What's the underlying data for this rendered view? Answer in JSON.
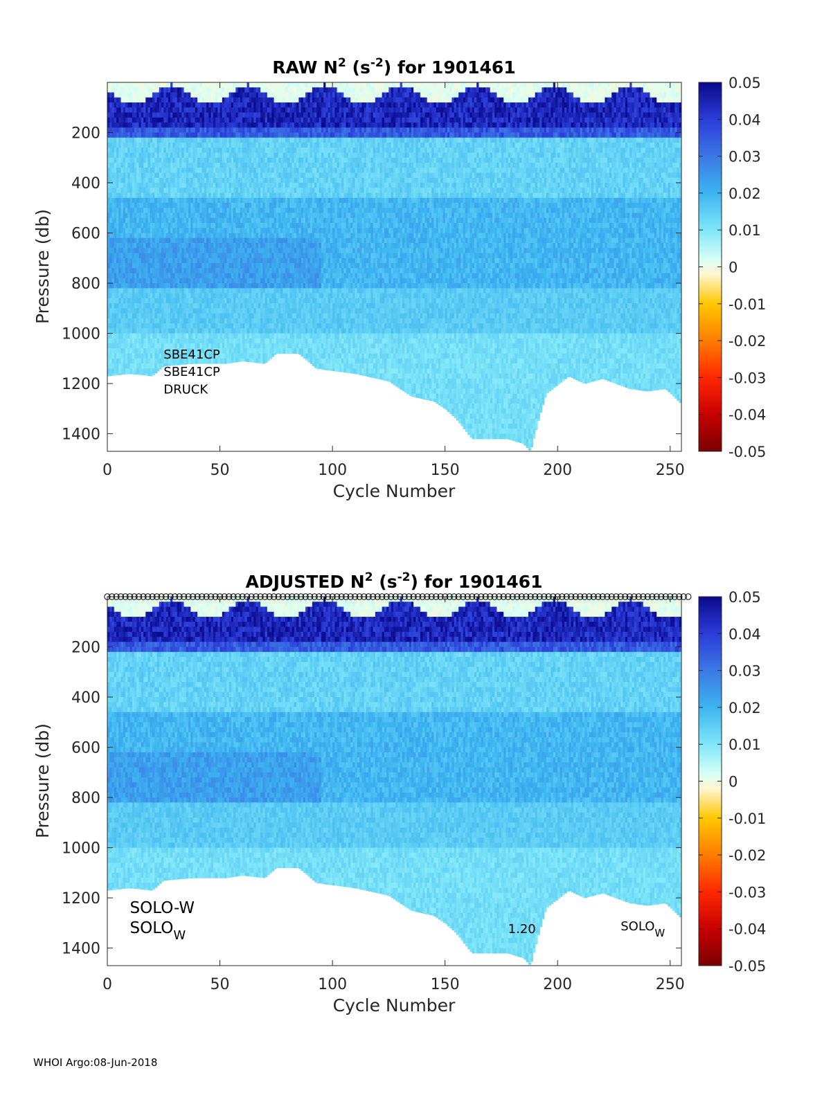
{
  "footer": "WHOI Argo:08-Jun-2018",
  "chart_data": [
    {
      "type": "heatmap",
      "title_main": "RAW N",
      "title_sup1": "2",
      "title_mid": " (s",
      "title_sup2": "-2",
      "title_end": ") for 1901461",
      "xlabel": "Cycle Number",
      "ylabel": "Pressure (db)",
      "xlim": [
        0,
        255
      ],
      "ylim": [
        1470,
        0
      ],
      "xticks": [
        0,
        50,
        100,
        150,
        200,
        250
      ],
      "yticks": [
        200,
        400,
        600,
        800,
        1000,
        1200,
        1400
      ],
      "colorbar": {
        "min": -0.05,
        "max": 0.05,
        "ticks": [
          "0.05",
          "0.04",
          "0.03",
          "0.02",
          "0.01",
          "0",
          "-0.01",
          "-0.02",
          "-0.03",
          "-0.04",
          "-0.05"
        ]
      },
      "annotations": [
        {
          "text": "SBE41CP",
          "cycle": 25,
          "pressure": 1100,
          "size": "small"
        },
        {
          "text": "SBE41CP",
          "cycle": 25,
          "pressure": 1170,
          "size": "small"
        },
        {
          "text": "DRUCK",
          "cycle": 25,
          "pressure": 1240,
          "size": "small"
        }
      ],
      "profile_bottom": [
        [
          0,
          1170
        ],
        [
          10,
          1160
        ],
        [
          20,
          1170
        ],
        [
          25,
          1130
        ],
        [
          38,
          1120
        ],
        [
          53,
          1120
        ],
        [
          60,
          1110
        ],
        [
          70,
          1120
        ],
        [
          75,
          1080
        ],
        [
          85,
          1080
        ],
        [
          93,
          1140
        ],
        [
          110,
          1160
        ],
        [
          125,
          1190
        ],
        [
          135,
          1250
        ],
        [
          145,
          1270
        ],
        [
          150,
          1300
        ],
        [
          155,
          1340
        ],
        [
          162,
          1420
        ],
        [
          170,
          1420
        ],
        [
          178,
          1420
        ],
        [
          185,
          1440
        ],
        [
          188,
          1470
        ],
        [
          192,
          1330
        ],
        [
          195,
          1240
        ],
        [
          205,
          1170
        ],
        [
          212,
          1200
        ],
        [
          220,
          1180
        ],
        [
          232,
          1220
        ],
        [
          240,
          1230
        ],
        [
          248,
          1220
        ],
        [
          255,
          1280
        ]
      ],
      "surface_markers": false
    },
    {
      "type": "heatmap",
      "title_main": "ADJUSTED N",
      "title_sup1": "2",
      "title_mid": " (s",
      "title_sup2": "-2",
      "title_end": ") for 1901461",
      "xlabel": "Cycle Number",
      "ylabel": "Pressure (db)",
      "xlim": [
        0,
        255
      ],
      "ylim": [
        1470,
        0
      ],
      "xticks": [
        0,
        50,
        100,
        150,
        200,
        250
      ],
      "yticks": [
        200,
        400,
        600,
        800,
        1000,
        1200,
        1400
      ],
      "colorbar": {
        "min": -0.05,
        "max": 0.05,
        "ticks": [
          "0.05",
          "0.04",
          "0.03",
          "0.02",
          "0.01",
          "0",
          "-0.01",
          "-0.02",
          "-0.03",
          "-0.04",
          "-0.05"
        ]
      },
      "annotations": [
        {
          "text": "SOLO-W",
          "cycle": 10,
          "pressure": 1260,
          "size": "large"
        },
        {
          "text": "SOLO",
          "sub": "W",
          "cycle": 10,
          "pressure": 1340,
          "size": "large"
        },
        {
          "text": "1.20",
          "cycle": 178,
          "pressure": 1340,
          "size": "small"
        },
        {
          "text": "SOLO",
          "sub": "W",
          "cycle": 228,
          "pressure": 1330,
          "size": "small"
        }
      ],
      "profile_bottom": [
        [
          0,
          1170
        ],
        [
          10,
          1160
        ],
        [
          20,
          1170
        ],
        [
          25,
          1130
        ],
        [
          38,
          1120
        ],
        [
          53,
          1120
        ],
        [
          60,
          1110
        ],
        [
          70,
          1120
        ],
        [
          75,
          1080
        ],
        [
          85,
          1080
        ],
        [
          93,
          1140
        ],
        [
          110,
          1160
        ],
        [
          125,
          1190
        ],
        [
          135,
          1250
        ],
        [
          145,
          1270
        ],
        [
          150,
          1300
        ],
        [
          155,
          1340
        ],
        [
          162,
          1420
        ],
        [
          170,
          1420
        ],
        [
          178,
          1420
        ],
        [
          185,
          1440
        ],
        [
          188,
          1470
        ],
        [
          192,
          1330
        ],
        [
          195,
          1240
        ],
        [
          205,
          1170
        ],
        [
          212,
          1200
        ],
        [
          220,
          1180
        ],
        [
          232,
          1220
        ],
        [
          240,
          1230
        ],
        [
          248,
          1220
        ],
        [
          255,
          1280
        ]
      ],
      "surface_markers": true
    }
  ],
  "colors": {
    "colormap": [
      "#7a0000",
      "#c80000",
      "#ff2800",
      "#ff7d00",
      "#ffc800",
      "#fff5d2",
      "#d7fff5",
      "#7fe6f8",
      "#3cb4f0",
      "#3c78e6",
      "#2b3cd8",
      "#0a0a8c"
    ]
  }
}
